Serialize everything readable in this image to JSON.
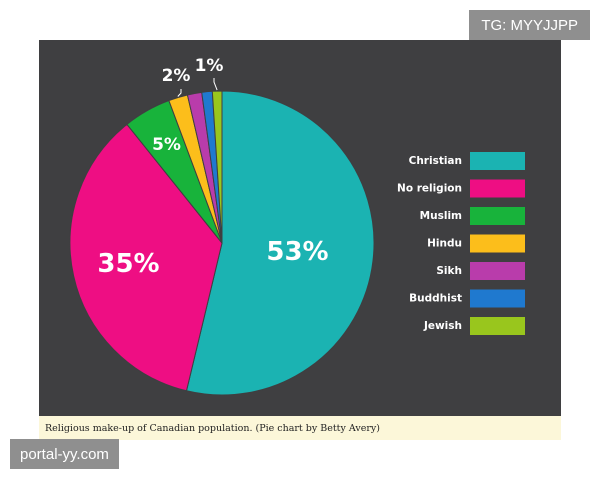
{
  "chart_data": {
    "type": "pie",
    "title": "",
    "slices": [
      {
        "label": "Christian",
        "value": 53,
        "color": "#1bb3b2",
        "data_label": "53%"
      },
      {
        "label": "No religion",
        "value": 35,
        "color": "#ee0e83",
        "data_label": "35%"
      },
      {
        "label": "Muslim",
        "value": 5,
        "color": "#18b33b",
        "data_label": "5%"
      },
      {
        "label": "Hindu",
        "value": 2,
        "color": "#fcbe1b",
        "data_label": "2%"
      },
      {
        "label": "Sikh",
        "value": 1.5,
        "color": "#b93cab",
        "data_label": ""
      },
      {
        "label": "Buddhist",
        "value": 1.1,
        "color": "#1f79cf",
        "data_label": ""
      },
      {
        "label": "Jewish",
        "value": 1,
        "color": "#99c61d",
        "data_label": "1%"
      }
    ],
    "legend_position": "right",
    "background_color": "#3f3f41"
  },
  "caption": "Religious make-up of Canadian population. (Pie chart by Betty Avery)",
  "watermarks": {
    "top_right": "TG: MYYJJPP",
    "bottom_left": "portal-yy.com"
  }
}
